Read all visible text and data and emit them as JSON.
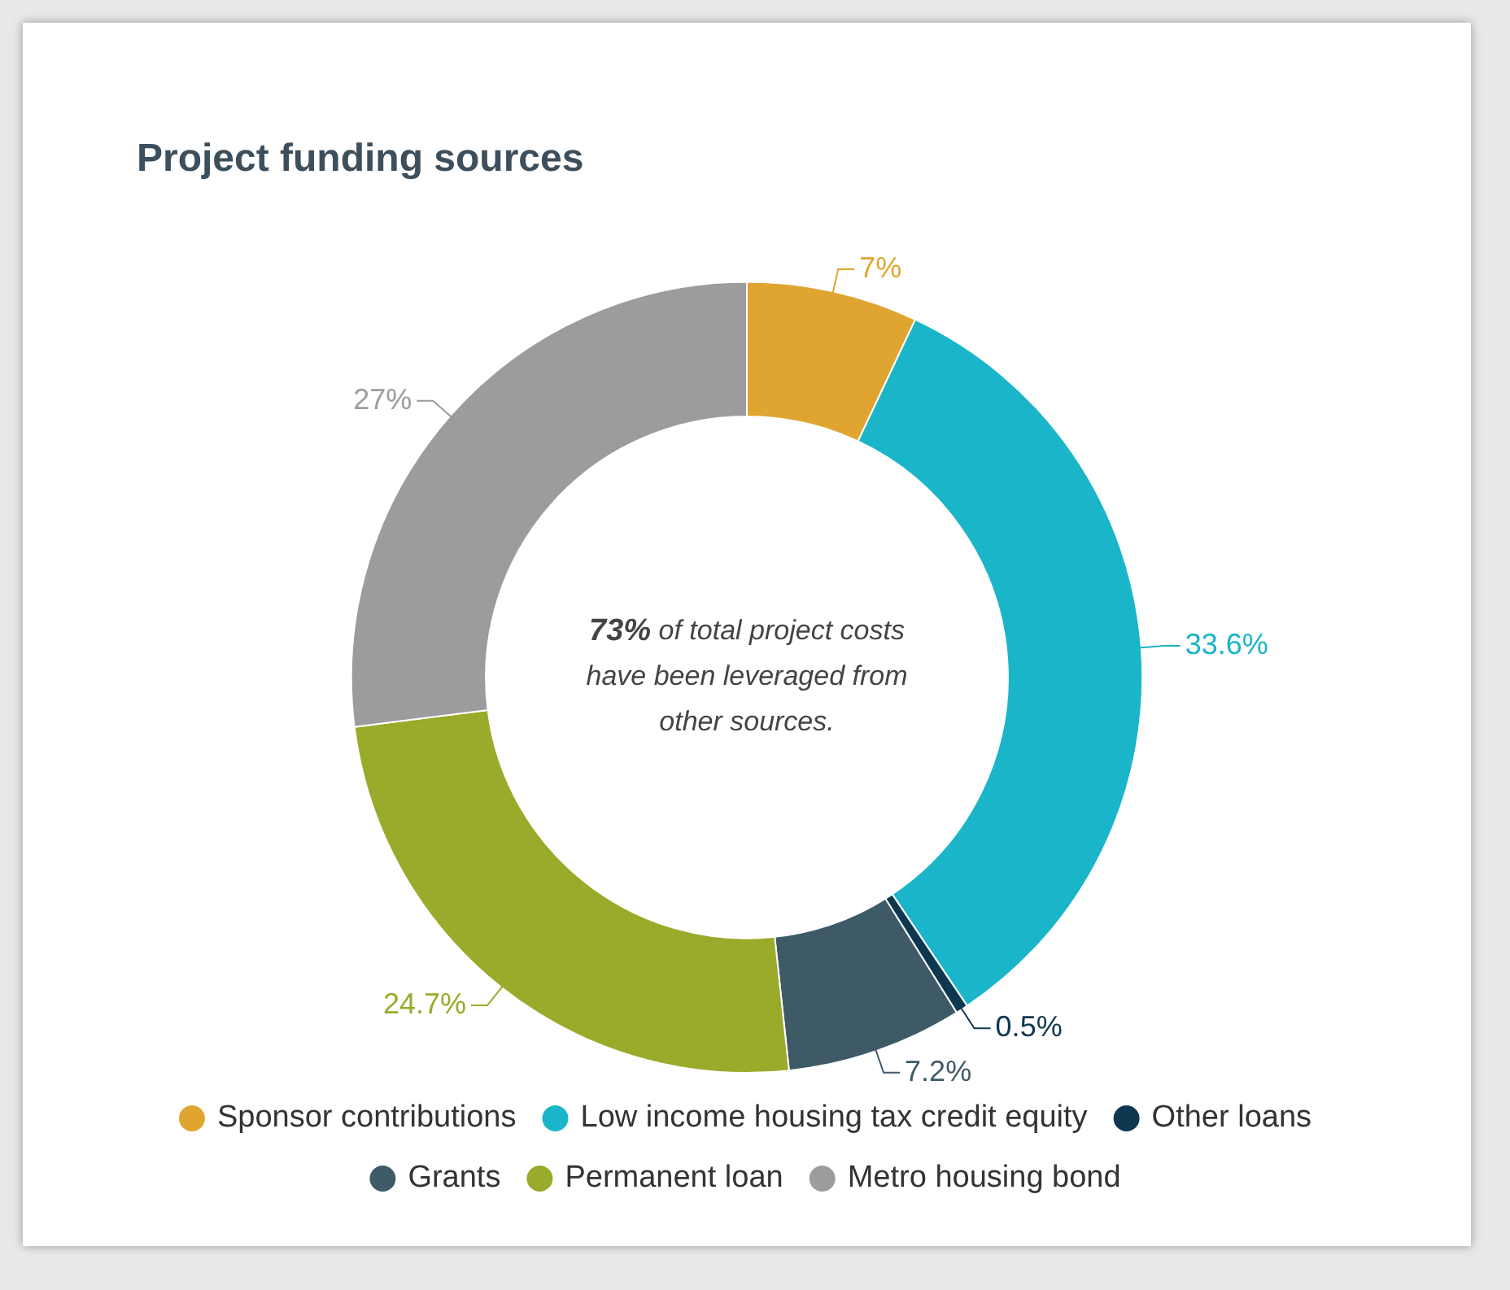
{
  "chart_data": {
    "type": "donut",
    "title": "Project funding sources",
    "categories": [
      "Sponsor contributions",
      "Low income housing tax credit equity",
      "Other loans",
      "Grants",
      "Permanent loan",
      "Metro housing bond"
    ],
    "values": [
      7,
      33.6,
      0.5,
      7.2,
      24.7,
      27
    ],
    "colors": [
      "#e0a530",
      "#1ab5c8",
      "#0d3850",
      "#3e5a66",
      "#9aaa2a",
      "#9c9c9e"
    ],
    "value_labels": [
      "7%",
      "33.6%",
      "0.5%",
      "7.2%",
      "24.7%",
      "27%"
    ],
    "annotations": [
      "73% of total project costs have been leveraged from other sources."
    ],
    "legend": "bottom"
  }
}
